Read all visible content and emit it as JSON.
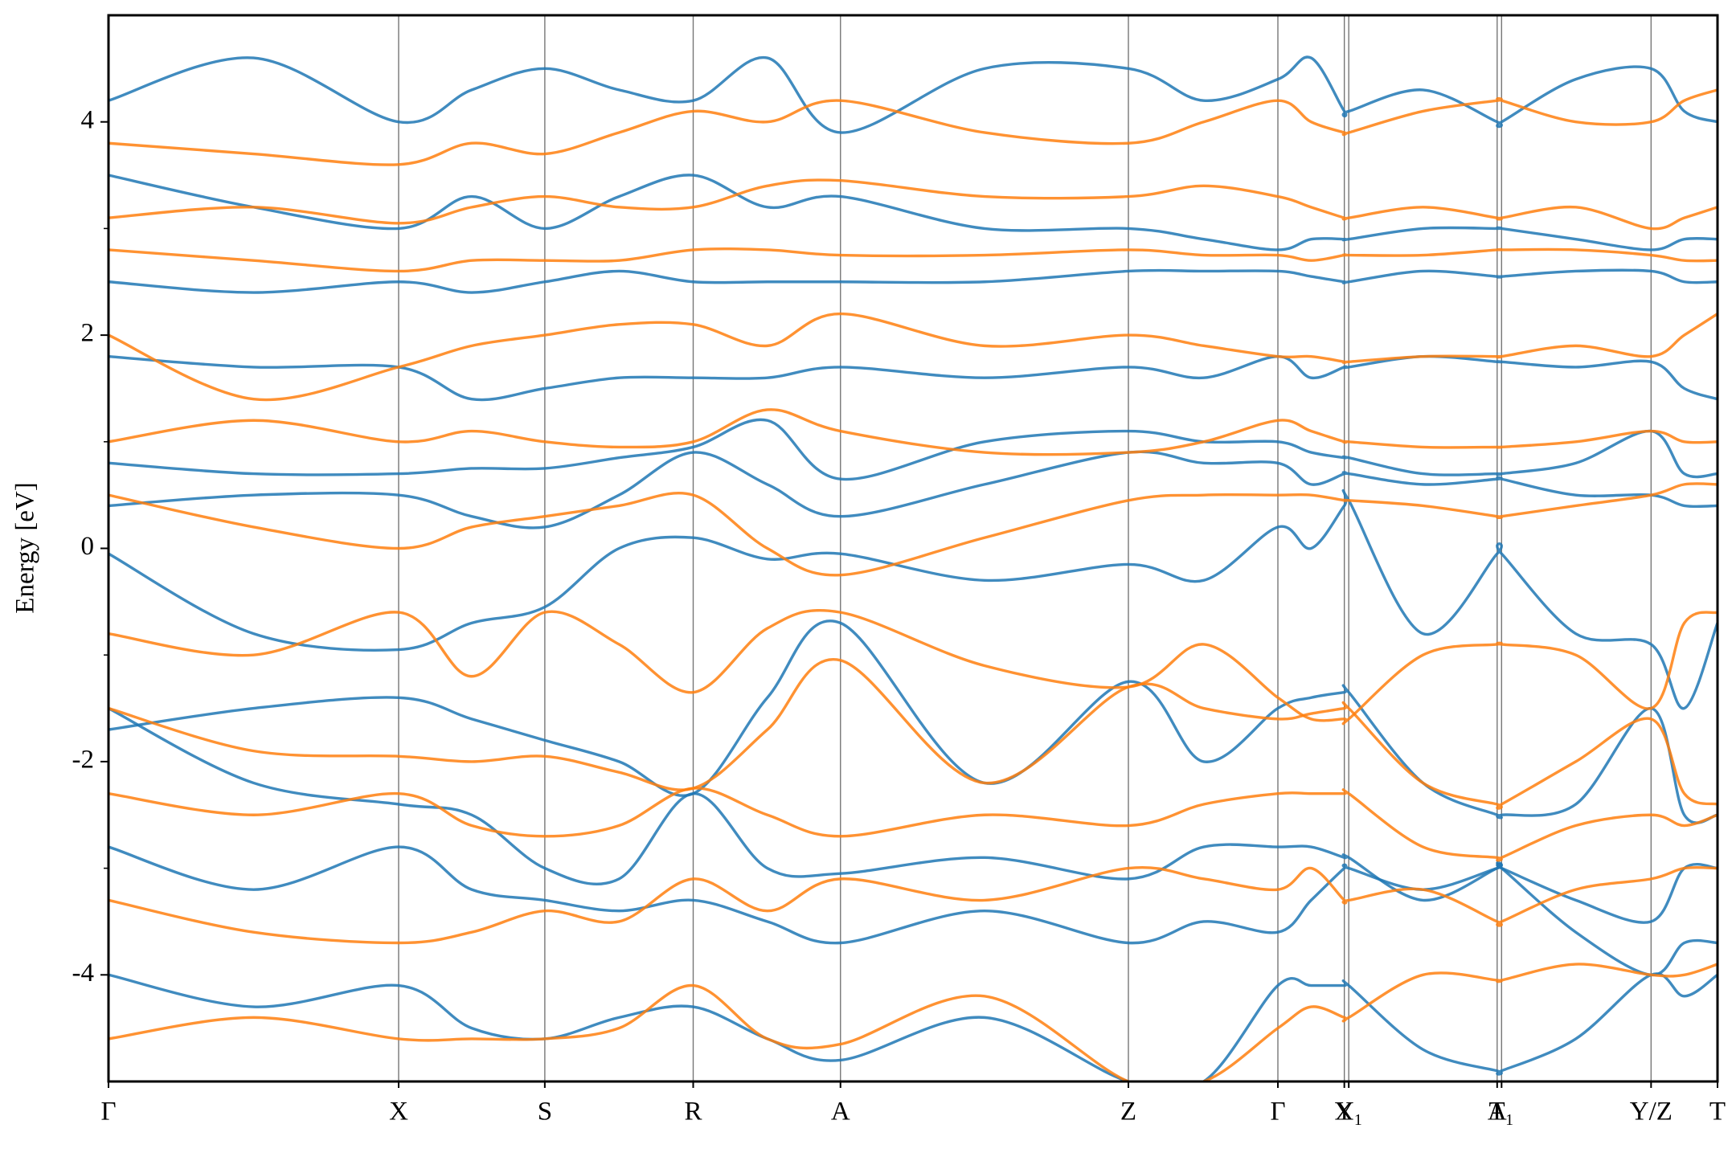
{
  "chart_data": {
    "type": "line",
    "y_label": "Energy [eV]",
    "x": [
      0,
      1.31,
      2.62,
      3.28,
      3.94,
      4.61,
      5.28,
      5.95,
      6.61,
      7.91,
      9.21,
      9.89,
      10.56,
      10.86,
      11.16,
      11.2,
      11.87,
      12.54,
      12.58,
      13.25,
      13.93,
      14.23,
      14.53
    ],
    "xlim": [
      0,
      14.53
    ],
    "xticks": [
      {
        "value": 0,
        "label": "Γ"
      },
      {
        "value": 2.62,
        "label": "X"
      },
      {
        "value": 3.94,
        "label": "S"
      },
      {
        "value": 5.28,
        "label": "R"
      },
      {
        "value": 6.61,
        "label": "A"
      },
      {
        "value": 9.21,
        "label": "Z"
      },
      {
        "value": 10.56,
        "label": "Γ"
      },
      {
        "value": 11.16,
        "label": "Y"
      },
      {
        "value": 11.2,
        "label": "X₁"
      },
      {
        "value": 12.54,
        "label": "A"
      },
      {
        "value": 12.58,
        "label": "T₁"
      },
      {
        "value": 13.93,
        "label": "Y/Z"
      },
      {
        "value": 14.53,
        "label": "T"
      }
    ],
    "x_grid": true,
    "ylim": [
      -5,
      5
    ],
    "yticks": [
      -4,
      -2,
      0,
      2,
      4
    ],
    "yminorticks": [
      -3,
      -1,
      1,
      3
    ],
    "series": [
      {
        "color": "#1f77b4",
        "values": [
          -4.0,
          -4.3,
          -4.1,
          -4.5,
          -4.6,
          -4.4,
          -4.3,
          -4.6,
          -4.8,
          -4.4,
          -5.0,
          -5.0,
          -4.1,
          -4.1,
          -4.1,
          -4.1,
          -4.7,
          -4.9,
          -4.9,
          -4.6,
          -4.0,
          -4.2,
          -4.0
        ]
      },
      {
        "color": "#1f77b4",
        "values": [
          -2.8,
          -3.2,
          -2.8,
          -3.2,
          -3.3,
          -3.4,
          -3.3,
          -3.5,
          -3.7,
          -3.4,
          -3.7,
          -3.5,
          -3.6,
          -3.3,
          -3.0,
          -3.0,
          -3.2,
          -3.0,
          -3.0,
          -3.6,
          -4.0,
          -3.7,
          -3.7
        ]
      },
      {
        "color": "#1f77b4",
        "values": [
          -1.5,
          -2.2,
          -2.4,
          -2.5,
          -3.0,
          -3.1,
          -2.3,
          -3.0,
          -3.05,
          -2.9,
          -3.1,
          -2.8,
          -2.8,
          -2.8,
          -2.9,
          -2.9,
          -3.3,
          -3.0,
          -3.0,
          -3.3,
          -3.5,
          -3.0,
          -3.0
        ]
      },
      {
        "color": "#1f77b4",
        "values": [
          -1.7,
          -1.5,
          -1.4,
          -1.6,
          -1.8,
          -2.0,
          -2.3,
          -1.4,
          -0.7,
          -2.2,
          -1.25,
          -2.0,
          -1.5,
          -1.4,
          -1.35,
          -1.35,
          -2.2,
          -2.5,
          -2.5,
          -2.4,
          -1.5,
          -2.5,
          -2.5
        ]
      },
      {
        "color": "#1f77b4",
        "values": [
          -0.05,
          -0.8,
          -0.95,
          -0.7,
          -0.55,
          0.0,
          0.1,
          -0.1,
          -0.05,
          -0.3,
          -0.15,
          -0.3,
          0.2,
          0.0,
          0.4,
          0.45,
          -0.8,
          -0.05,
          -0.05,
          -0.8,
          -0.9,
          -1.5,
          -0.7
        ]
      },
      {
        "color": "#1f77b4",
        "values": [
          0.4,
          0.5,
          0.5,
          0.3,
          0.2,
          0.5,
          0.9,
          0.6,
          0.3,
          0.6,
          0.9,
          0.8,
          0.8,
          0.6,
          0.7,
          0.7,
          0.6,
          0.65,
          0.65,
          0.5,
          0.5,
          0.4,
          0.4
        ]
      },
      {
        "color": "#1f77b4",
        "values": [
          0.8,
          0.7,
          0.7,
          0.75,
          0.75,
          0.85,
          0.95,
          1.2,
          0.65,
          1.0,
          1.1,
          1.0,
          1.0,
          0.9,
          0.85,
          0.85,
          0.7,
          0.7,
          0.7,
          0.8,
          1.1,
          0.7,
          0.7
        ]
      },
      {
        "color": "#1f77b4",
        "values": [
          1.8,
          1.7,
          1.7,
          1.4,
          1.5,
          1.6,
          1.6,
          1.6,
          1.7,
          1.6,
          1.7,
          1.6,
          1.8,
          1.6,
          1.7,
          1.7,
          1.8,
          1.75,
          1.75,
          1.7,
          1.75,
          1.5,
          1.4
        ]
      },
      {
        "color": "#1f77b4",
        "values": [
          2.5,
          2.4,
          2.5,
          2.4,
          2.5,
          2.6,
          2.5,
          2.5,
          2.5,
          2.5,
          2.6,
          2.6,
          2.6,
          2.55,
          2.5,
          2.5,
          2.6,
          2.55,
          2.55,
          2.6,
          2.6,
          2.5,
          2.5
        ]
      },
      {
        "color": "#1f77b4",
        "values": [
          3.5,
          3.2,
          3.0,
          3.3,
          3.0,
          3.3,
          3.5,
          3.2,
          3.3,
          3.0,
          3.0,
          2.9,
          2.8,
          2.9,
          2.9,
          2.9,
          3.0,
          3.0,
          3.0,
          2.9,
          2.8,
          2.9,
          2.9
        ]
      },
      {
        "color": "#1f77b4",
        "values": [
          4.2,
          4.6,
          4.0,
          4.3,
          4.5,
          4.3,
          4.2,
          4.6,
          3.9,
          4.5,
          4.5,
          4.2,
          4.4,
          4.6,
          4.1,
          4.1,
          4.3,
          4.0,
          4.0,
          4.4,
          4.5,
          4.1,
          4.0
        ]
      },
      {
        "color": "#ff7f0e",
        "values": [
          -4.6,
          -4.4,
          -4.6,
          -4.6,
          -4.6,
          -4.5,
          -4.1,
          -4.6,
          -4.65,
          -4.2,
          -5.0,
          -5.0,
          -4.5,
          -4.3,
          -4.4,
          -4.4,
          -4.0,
          -4.05,
          -4.05,
          -3.9,
          -4.0,
          -4.0,
          -3.9
        ]
      },
      {
        "color": "#ff7f0e",
        "values": [
          -3.3,
          -3.6,
          -3.7,
          -3.6,
          -3.4,
          -3.5,
          -3.1,
          -3.4,
          -3.1,
          -3.3,
          -3.0,
          -3.1,
          -3.2,
          -3.0,
          -3.3,
          -3.3,
          -3.2,
          -3.5,
          -3.5,
          -3.2,
          -3.1,
          -3.0,
          -3.0
        ]
      },
      {
        "color": "#ff7f0e",
        "values": [
          -2.3,
          -2.5,
          -2.3,
          -2.6,
          -2.7,
          -2.6,
          -2.25,
          -2.5,
          -2.7,
          -2.5,
          -2.6,
          -2.4,
          -2.3,
          -2.3,
          -2.3,
          -2.3,
          -2.8,
          -2.9,
          -2.9,
          -2.6,
          -2.5,
          -2.6,
          -2.5
        ]
      },
      {
        "color": "#ff7f0e",
        "values": [
          -1.5,
          -1.9,
          -1.95,
          -2.0,
          -1.95,
          -2.1,
          -2.25,
          -1.7,
          -1.05,
          -2.2,
          -1.3,
          -1.5,
          -1.6,
          -1.55,
          -1.5,
          -1.5,
          -2.2,
          -2.4,
          -2.4,
          -2.0,
          -1.6,
          -2.3,
          -2.4
        ]
      },
      {
        "color": "#ff7f0e",
        "values": [
          -0.8,
          -1.0,
          -0.6,
          -1.2,
          -0.6,
          -0.9,
          -1.35,
          -0.75,
          -0.6,
          -1.1,
          -1.3,
          -0.9,
          -1.4,
          -1.6,
          -1.6,
          -1.6,
          -1.0,
          -0.9,
          -0.9,
          -1.0,
          -1.5,
          -0.7,
          -0.6
        ]
      },
      {
        "color": "#ff7f0e",
        "values": [
          0.5,
          0.2,
          0.0,
          0.2,
          0.3,
          0.4,
          0.5,
          0.0,
          -0.25,
          0.1,
          0.45,
          0.5,
          0.5,
          0.5,
          0.45,
          0.45,
          0.4,
          0.3,
          0.3,
          0.4,
          0.5,
          0.6,
          0.6
        ]
      },
      {
        "color": "#ff7f0e",
        "values": [
          1.0,
          1.2,
          1.0,
          1.1,
          1.0,
          0.95,
          1.0,
          1.3,
          1.1,
          0.9,
          0.9,
          1.0,
          1.2,
          1.1,
          1.0,
          1.0,
          0.95,
          0.95,
          0.95,
          1.0,
          1.1,
          1.0,
          1.0
        ]
      },
      {
        "color": "#ff7f0e",
        "values": [
          2.0,
          1.4,
          1.7,
          1.9,
          2.0,
          2.1,
          2.1,
          1.9,
          2.2,
          1.9,
          2.0,
          1.9,
          1.8,
          1.8,
          1.75,
          1.75,
          1.8,
          1.8,
          1.8,
          1.9,
          1.8,
          2.0,
          2.2
        ]
      },
      {
        "color": "#ff7f0e",
        "values": [
          2.8,
          2.7,
          2.6,
          2.7,
          2.7,
          2.7,
          2.8,
          2.8,
          2.75,
          2.75,
          2.8,
          2.75,
          2.75,
          2.7,
          2.75,
          2.75,
          2.75,
          2.8,
          2.8,
          2.8,
          2.75,
          2.7,
          2.7
        ]
      },
      {
        "color": "#ff7f0e",
        "values": [
          3.1,
          3.2,
          3.05,
          3.2,
          3.3,
          3.2,
          3.2,
          3.4,
          3.45,
          3.3,
          3.3,
          3.4,
          3.3,
          3.2,
          3.1,
          3.1,
          3.2,
          3.1,
          3.1,
          3.2,
          3.0,
          3.1,
          3.2
        ]
      },
      {
        "color": "#ff7f0e",
        "values": [
          3.8,
          3.7,
          3.6,
          3.8,
          3.7,
          3.9,
          4.1,
          4.0,
          4.2,
          3.9,
          3.8,
          4.0,
          4.2,
          4.0,
          3.9,
          3.9,
          4.1,
          4.2,
          4.2,
          4.0,
          4.0,
          4.2,
          4.3
        ]
      }
    ]
  }
}
